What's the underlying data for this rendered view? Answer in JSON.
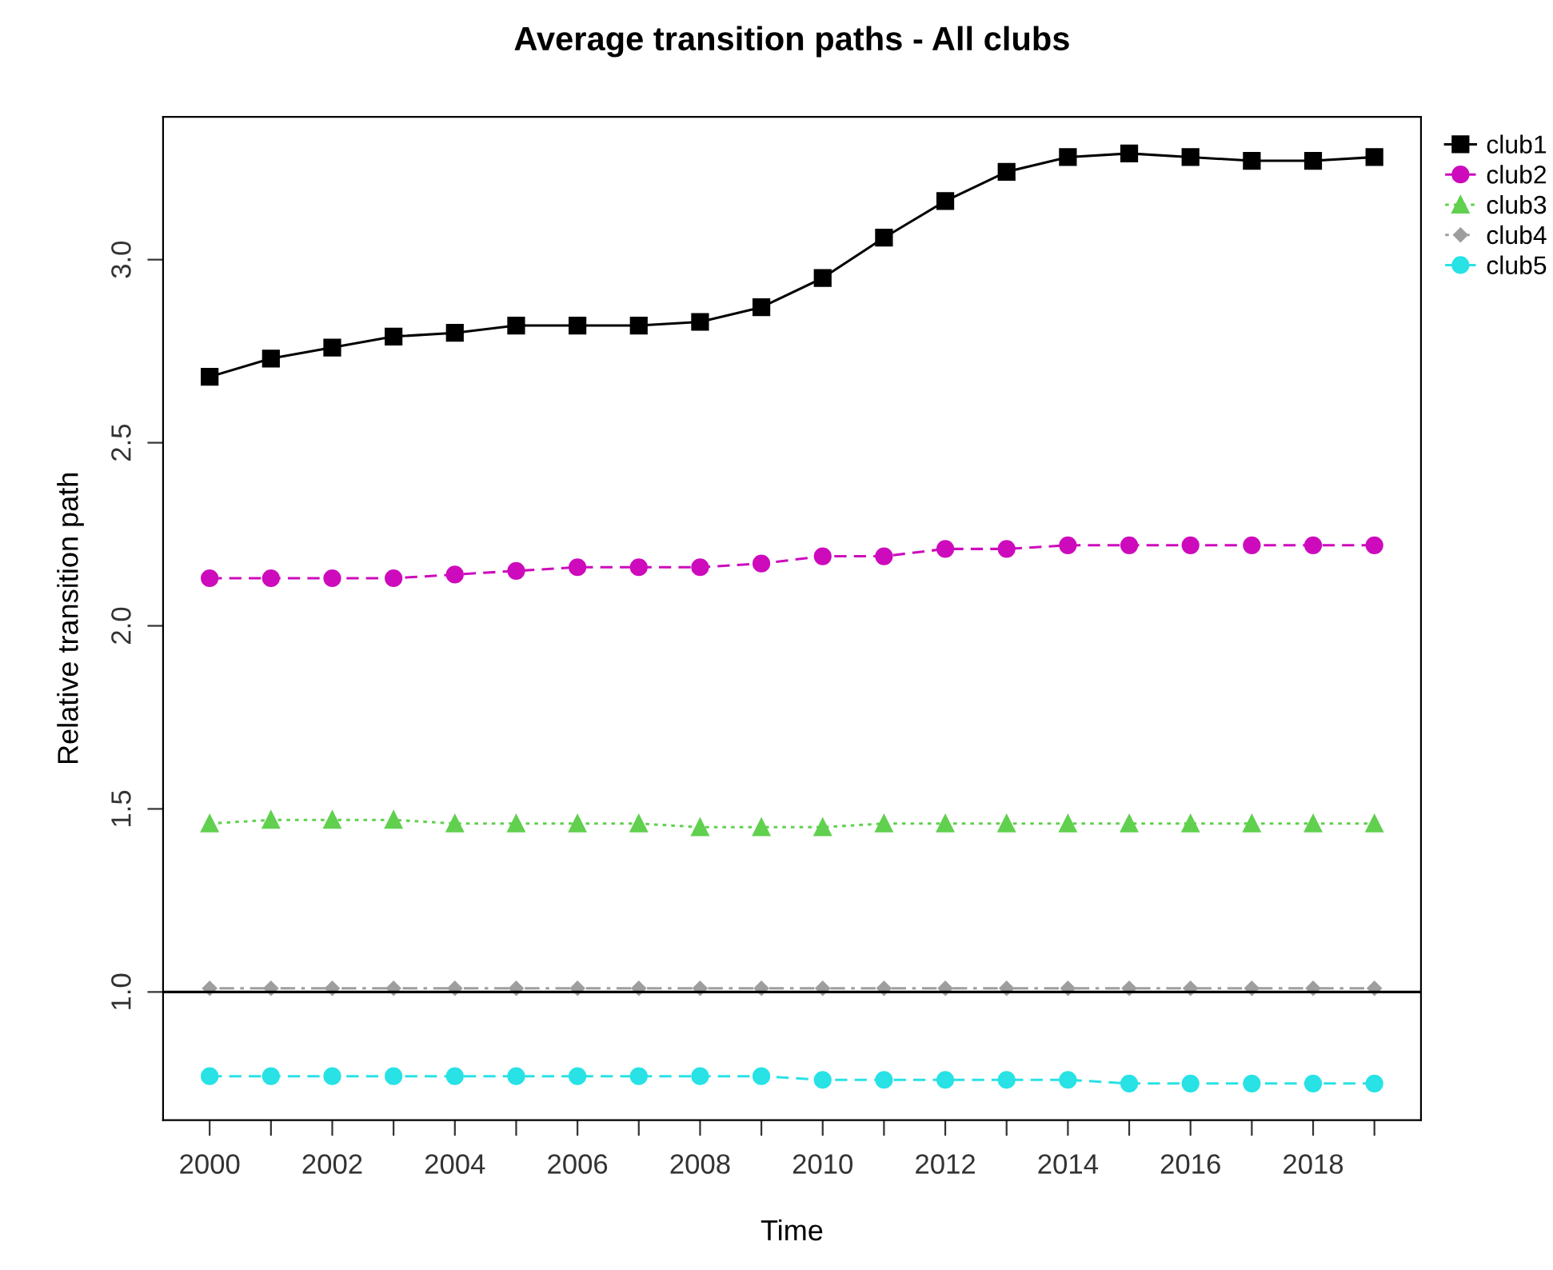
{
  "chart_data": {
    "type": "line",
    "title": "Average transition paths - All clubs",
    "xlabel": "Time",
    "ylabel": "Relative transition path",
    "x": [
      2000,
      2001,
      2002,
      2003,
      2004,
      2005,
      2006,
      2007,
      2008,
      2009,
      2010,
      2011,
      2012,
      2013,
      2014,
      2015,
      2016,
      2017,
      2018,
      2019
    ],
    "series": [
      {
        "name": "club1",
        "color": "#000000",
        "marker": "square",
        "line_style": "solid",
        "values": [
          2.68,
          2.73,
          2.76,
          2.79,
          2.8,
          2.82,
          2.82,
          2.82,
          2.83,
          2.87,
          2.95,
          3.06,
          3.16,
          3.24,
          3.28,
          3.29,
          3.28,
          3.27,
          3.27,
          3.28
        ]
      },
      {
        "name": "club2",
        "color": "#cd0bbc",
        "marker": "circle",
        "line_style": "dashed",
        "values": [
          2.13,
          2.13,
          2.13,
          2.13,
          2.14,
          2.15,
          2.16,
          2.16,
          2.16,
          2.17,
          2.19,
          2.19,
          2.21,
          2.21,
          2.22,
          2.22,
          2.22,
          2.22,
          2.22,
          2.22
        ]
      },
      {
        "name": "club3",
        "color": "#61d04f",
        "marker": "triangle",
        "line_style": "dotted",
        "values": [
          1.46,
          1.47,
          1.47,
          1.47,
          1.46,
          1.46,
          1.46,
          1.46,
          1.45,
          1.45,
          1.45,
          1.46,
          1.46,
          1.46,
          1.46,
          1.46,
          1.46,
          1.46,
          1.46,
          1.46
        ]
      },
      {
        "name": "club4",
        "color": "#9e9e9e",
        "marker": "diamond",
        "line_style": "dashdot",
        "values": [
          1.01,
          1.01,
          1.01,
          1.01,
          1.01,
          1.01,
          1.01,
          1.01,
          1.01,
          1.01,
          1.01,
          1.01,
          1.01,
          1.01,
          1.01,
          1.01,
          1.01,
          1.01,
          1.01,
          1.01
        ]
      },
      {
        "name": "club5",
        "color": "#28e2e5",
        "marker": "circle",
        "line_style": "dashed",
        "values": [
          0.77,
          0.77,
          0.77,
          0.77,
          0.77,
          0.77,
          0.77,
          0.77,
          0.77,
          0.77,
          0.76,
          0.76,
          0.76,
          0.76,
          0.76,
          0.75,
          0.75,
          0.75,
          0.75,
          0.75
        ]
      }
    ],
    "xlim": [
      1999.24,
      2019.76
    ],
    "xticks": [
      2000,
      {
        "value": 2001,
        "label": null
      },
      2002,
      {
        "value": 2003,
        "label": null
      },
      2004,
      {
        "value": 2005,
        "label": null
      },
      2006,
      {
        "value": 2007,
        "label": null
      },
      2008,
      {
        "value": 2009,
        "label": null
      },
      2010,
      {
        "value": 2011,
        "label": null
      },
      2012,
      {
        "value": 2013,
        "label": null
      },
      2014,
      {
        "value": 2015,
        "label": null
      },
      2016,
      {
        "value": 2017,
        "label": null
      },
      2018,
      {
        "value": 2019,
        "label": null
      }
    ],
    "ylim": [
      0.65,
      3.39
    ],
    "yticks": [
      {
        "value": 1.0,
        "label": "1.0"
      },
      {
        "value": 1.5,
        "label": "1.5"
      },
      {
        "value": 2.0,
        "label": "2.0"
      },
      {
        "value": 2.5,
        "label": "2.5"
      },
      {
        "value": 3.0,
        "label": "3.0"
      }
    ],
    "ref_lines": [
      {
        "axis": "y",
        "value": 1.0,
        "label": null,
        "color": "#000000",
        "line_style": "solid"
      }
    ],
    "grid": false,
    "legend": "top right"
  }
}
